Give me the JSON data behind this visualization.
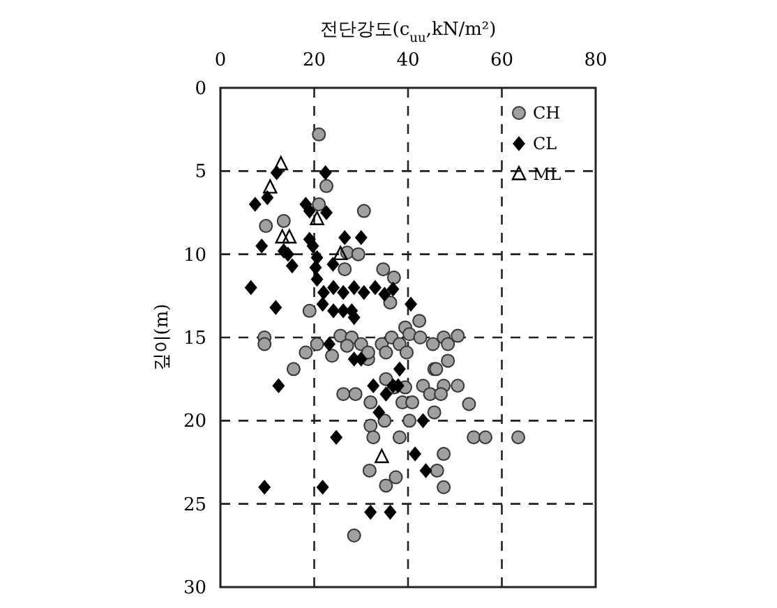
{
  "chart_data": {
    "type": "scatter",
    "xlabel": "전단강도(c$_{uu}$,kN/m²)",
    "ylabel": "깊이(m)",
    "xlim": [
      0,
      80
    ],
    "xticks": [
      0,
      20,
      40,
      60,
      80
    ],
    "ylim": [
      30,
      0
    ],
    "yticks": [
      0,
      5,
      10,
      15,
      20,
      25,
      30
    ],
    "grid": true,
    "legend": "top right",
    "series": [
      {
        "name": "CH",
        "color": "#a0a0a0",
        "marker": "circle",
        "x": [
          21,
          22.6,
          30.6,
          21,
          9.7,
          13.5,
          27,
          29.4,
          26.5,
          34.7,
          37,
          36.2,
          19,
          42.4,
          39.4,
          9.4,
          9.4,
          18.2,
          20.6,
          15.6,
          23.8,
          25.6,
          28,
          30,
          27,
          31.5,
          31.5,
          34.4,
          36.5,
          38.2,
          39.7,
          35.3,
          40.3,
          42.6,
          45.3,
          47.6,
          50.6,
          48.5,
          48.5,
          45.6,
          26.2,
          28.8,
          32,
          35.3,
          38.8,
          40.9,
          32,
          32.6,
          35,
          38.2,
          40.3,
          45.6,
          46,
          43.2,
          47.6,
          50.6,
          44.7,
          47,
          53,
          54,
          56.5,
          63.5,
          47.6,
          31.8,
          37.4,
          35.3,
          46.2,
          47.6,
          28.5,
          37,
          39.4
        ],
        "values": [
          2.8,
          5.9,
          7.4,
          7,
          8.3,
          8,
          9.9,
          10,
          10.9,
          10.9,
          11.4,
          12.9,
          13.4,
          14,
          14.4,
          15,
          15.4,
          15.9,
          15.4,
          16.9,
          16.1,
          14.9,
          15,
          15.4,
          15.5,
          16.3,
          15.9,
          15.4,
          15,
          15.4,
          15.9,
          15.9,
          14.8,
          15,
          15.4,
          15,
          14.9,
          15.4,
          16.4,
          16.9,
          18.4,
          18.4,
          18.9,
          17.5,
          18.9,
          18.9,
          20.3,
          21,
          20,
          21,
          20,
          19.5,
          16.9,
          17.9,
          17.9,
          17.9,
          18.4,
          18.4,
          19,
          21,
          21,
          21,
          22,
          23,
          23.4,
          23.9,
          23,
          24,
          26.9,
          18,
          18
        ]
      },
      {
        "name": "CL",
        "color": "#000000",
        "marker": "diamond",
        "x": [
          12,
          22.4,
          7.4,
          10,
          18.2,
          19,
          22.6,
          8.8,
          13.5,
          14.4,
          15.3,
          19,
          19.7,
          20.6,
          20.3,
          20.6,
          26.5,
          30,
          24,
          6.5,
          11.8,
          21.8,
          22,
          24.1,
          26.2,
          28.5,
          30.6,
          33,
          35,
          36.8,
          24.1,
          26.2,
          28,
          28.5,
          40.6,
          23.2,
          28.5,
          30,
          38.2,
          12.4,
          32.6,
          35.3,
          36.8,
          37.9,
          33.8,
          43.2,
          24.7,
          41.5,
          43.8,
          9.4,
          21.8,
          32,
          36.2
        ],
        "values": [
          5.1,
          5.1,
          7,
          6.6,
          7,
          7.4,
          7.5,
          9.5,
          9.8,
          10,
          10.7,
          9.1,
          9.5,
          10.2,
          10.8,
          11.5,
          9,
          9,
          10.6,
          12,
          13.2,
          13,
          12.3,
          12,
          12.3,
          12,
          12.3,
          12,
          12.4,
          12.1,
          13.4,
          13.4,
          13.4,
          13.8,
          13,
          15.4,
          16.3,
          16.3,
          16.9,
          17.9,
          17.9,
          18.4,
          17.9,
          17.9,
          19.5,
          20,
          21,
          22,
          23,
          24,
          24,
          25.5,
          25.5
        ]
      },
      {
        "name": "ML",
        "color": "#000000",
        "marker": "triangle",
        "x": [
          12.9,
          10.6,
          13.2,
          14.7,
          20.6,
          25.6,
          34.4
        ],
        "values": [
          4.6,
          6,
          9,
          9,
          7.9,
          10,
          22.2
        ]
      }
    ]
  }
}
